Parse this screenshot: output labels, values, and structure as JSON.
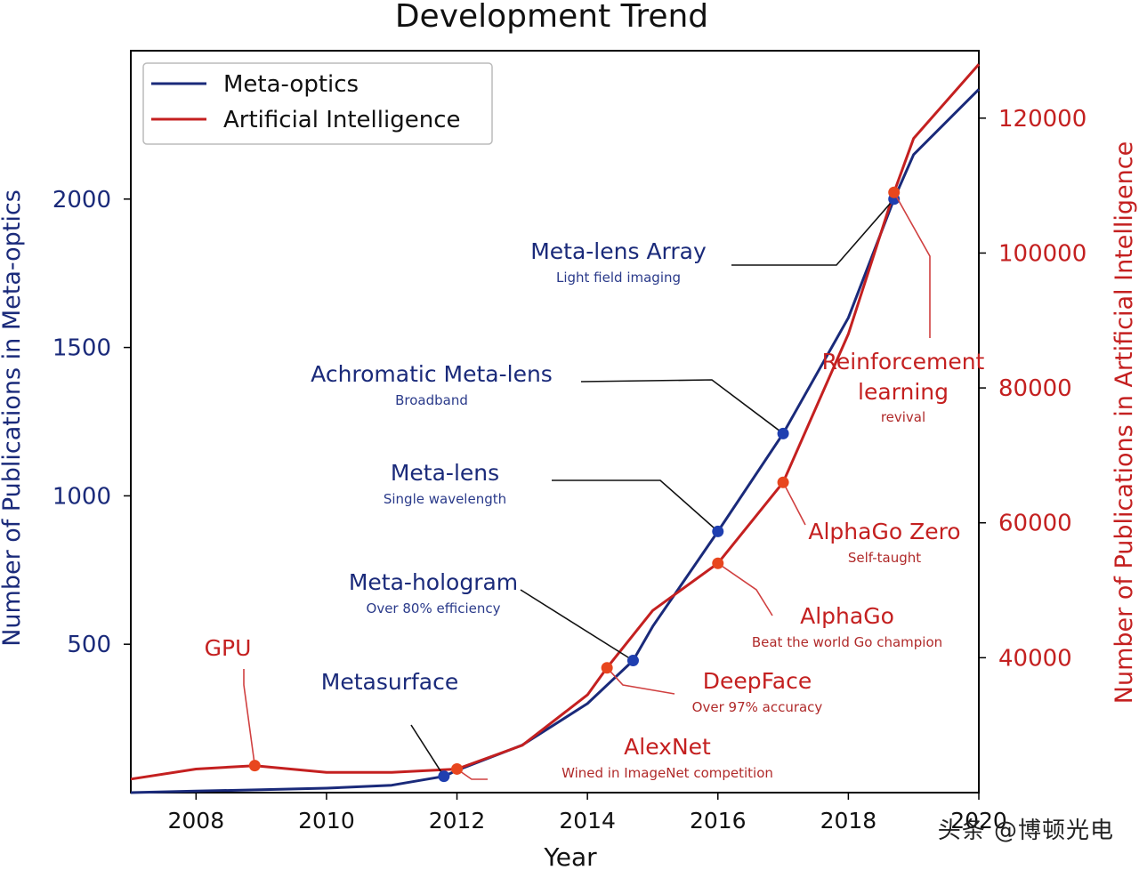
{
  "chart_data": {
    "type": "line",
    "title": "Development  Trend",
    "xlabel": "Year",
    "ylabel_left": "Number of Publications in Meta-optics",
    "ylabel_right": "Number of Publications in Artificial Intelligence",
    "xlim": [
      2007,
      2020
    ],
    "ylim_left": [
      0,
      2500
    ],
    "ylim_right": [
      20000,
      130000
    ],
    "x_ticks": [
      2008,
      2010,
      2012,
      2014,
      2016,
      2018,
      2020
    ],
    "y_ticks_left": [
      500,
      1000,
      1500,
      2000
    ],
    "y_ticks_right": [
      40000,
      60000,
      80000,
      100000,
      120000
    ],
    "grid": false,
    "legend_position": "top-left",
    "series": [
      {
        "name": "Meta-optics",
        "axis": "left",
        "color": "#1a2a7a",
        "x": [
          2007,
          2008,
          2009,
          2010,
          2011,
          2011.8,
          2012,
          2013,
          2014,
          2014.7,
          2015,
          2016,
          2017,
          2018,
          2018.7,
          2019,
          2020
        ],
        "y": [
          0,
          5,
          10,
          15,
          25,
          55,
          75,
          160,
          300,
          445,
          560,
          880,
          1210,
          1600,
          2000,
          2150,
          2370
        ]
      },
      {
        "name": "Artificial Intelligence",
        "axis": "right",
        "color": "#c42020",
        "x": [
          2007,
          2008,
          2008.9,
          2010,
          2011,
          2012,
          2013,
          2014,
          2014.3,
          2015,
          2016,
          2017,
          2018,
          2018.7,
          2019,
          2020
        ],
        "y": [
          22000,
          23500,
          24000,
          23000,
          23000,
          23500,
          27000,
          34500,
          38500,
          47000,
          54000,
          66000,
          88000,
          109000,
          117000,
          128000
        ]
      }
    ],
    "annotations": [
      {
        "series": "Meta-optics",
        "x": 2011.8,
        "y": 55,
        "title": "Metasurface",
        "subtitle": ""
      },
      {
        "series": "Meta-optics",
        "x": 2014.7,
        "y": 445,
        "title": "Meta-hologram",
        "subtitle": "Over 80% efficiency"
      },
      {
        "series": "Meta-optics",
        "x": 2016.0,
        "y": 880,
        "title": "Meta-lens",
        "subtitle": "Single wavelength"
      },
      {
        "series": "Meta-optics",
        "x": 2017.0,
        "y": 1210,
        "title": "Achromatic Meta-lens",
        "subtitle": "Broadband"
      },
      {
        "series": "Meta-optics",
        "x": 2018.7,
        "y": 2000,
        "title": "Meta-lens Array",
        "subtitle": "Light field imaging"
      },
      {
        "series": "Artificial Intelligence",
        "x": 2008.9,
        "y": 24000,
        "title": "GPU",
        "subtitle": ""
      },
      {
        "series": "Artificial Intelligence",
        "x": 2012.0,
        "y": 23500,
        "title": "AlexNet",
        "subtitle": "Wined in ImageNet competition"
      },
      {
        "series": "Artificial Intelligence",
        "x": 2014.3,
        "y": 38500,
        "title": "DeepFace",
        "subtitle": "Over 97% accuracy"
      },
      {
        "series": "Artificial Intelligence",
        "x": 2016.0,
        "y": 54000,
        "title": "AlphaGo",
        "subtitle": "Beat the world Go champion"
      },
      {
        "series": "Artificial Intelligence",
        "x": 2017.0,
        "y": 66000,
        "title": "AlphaGo Zero",
        "subtitle": "Self-taught"
      },
      {
        "series": "Artificial Intelligence",
        "x": 2018.7,
        "y": 109000,
        "title": "Reinforcement learning",
        "subtitle": "revival"
      }
    ]
  },
  "watermark": "头条 @博顿光电"
}
